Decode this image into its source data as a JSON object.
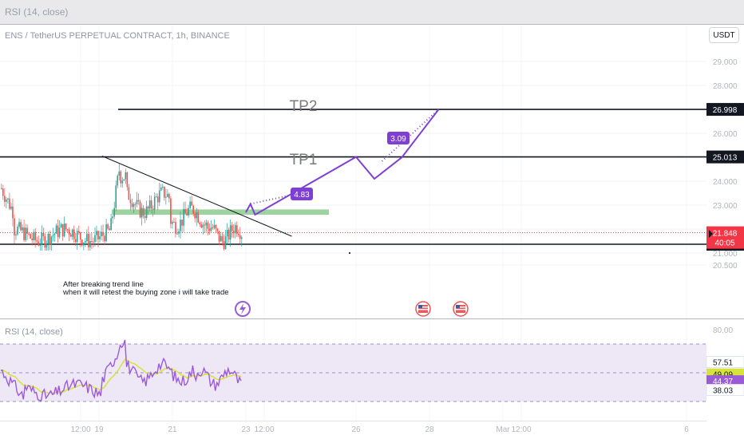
{
  "top_strip": {
    "rsi_label": "RSI (14, close)"
  },
  "header": {
    "symbol_title": "ENS / TetherUS PERPETUAL CONTRACT, 1h, BINANCE",
    "currency_button": "USDT"
  },
  "countdown": "40:05",
  "annotation": {
    "line1": "After breaking trend line",
    "line2": "when it will retest the buying zone i will take trade"
  },
  "colors": {
    "up": "#26a69a",
    "down": "#ef5350",
    "projection": "#7e3fd6",
    "zone": "#4caf50",
    "rsi_line": "#9c5bd6",
    "rsi_ma": "#d8e23c",
    "rsi_band": "#ede7f6"
  },
  "icons": [
    "lightning-event-icon",
    "us-flag-event-icon",
    "us-flag-event-icon"
  ],
  "chart_data": [
    {
      "type": "candlestick",
      "title": "ENS / TetherUS PERPETUAL CONTRACT, 1h, BINANCE",
      "ylim": [
        20.2,
        29.6
      ],
      "y_ticks": [
        20.5,
        21.0,
        22.0,
        23.0,
        24.0,
        25.0,
        26.0,
        27.0,
        28.0,
        29.0
      ],
      "y_tick_labels": [
        "20.500",
        "21.000",
        "22.000",
        "23.000",
        "24.000",
        "25.000",
        "26.000",
        "27.000",
        "28.000",
        "29.000"
      ],
      "x_tick_labels": [
        "12:00",
        "19",
        "21",
        "23",
        "12:00",
        "26",
        "28",
        "Mar",
        "12:00",
        "6"
      ],
      "price_range": {
        "low": 21.1,
        "high": 25.05,
        "last": 21.848
      },
      "horizontal_levels": [
        {
          "value": 26.998,
          "label": "26.998",
          "text": "TP2"
        },
        {
          "value": 25.013,
          "label": "25.013",
          "text": "TP1"
        },
        {
          "value": 21.367,
          "label": "21.367",
          "text": ""
        }
      ],
      "last_price": {
        "value": 21.848,
        "label": "21.848"
      },
      "buy_zone": {
        "low": 22.6,
        "high": 22.82
      },
      "trend_line": [
        {
          "x": "19 02:00",
          "y": 25.05
        },
        {
          "x": "24 06:00",
          "y": 21.7
        }
      ],
      "projection_path": [
        {
          "x": "23 00:00",
          "y": 22.7
        },
        {
          "x": "23 03:00",
          "y": 23.05
        },
        {
          "x": "23 06:00",
          "y": 22.6
        },
        {
          "x": "26 00:00",
          "y": 25.013
        },
        {
          "x": "26 12:00",
          "y": 24.1
        },
        {
          "x": "27 06:00",
          "y": 25.0
        },
        {
          "x": "28 06:00",
          "y": 26.998
        }
      ],
      "measurement_labels": [
        {
          "text": "4.83"
        },
        {
          "text": "3.09"
        }
      ]
    },
    {
      "type": "line",
      "title": "RSI (14, close)",
      "ylim": [
        30,
        82
      ],
      "y_ticks": [
        80
      ],
      "y_tick_labels": [
        "80.00"
      ],
      "band": [
        30,
        70
      ],
      "series": [
        {
          "name": "RSI",
          "last": 44.37,
          "label": "44.37"
        },
        {
          "name": "RSI-based MA",
          "last": 49.09,
          "label": "49.09"
        }
      ],
      "axis_markers": [
        {
          "value": 57.51,
          "label": "57.51"
        },
        {
          "value": 38.03,
          "label": "38.03"
        }
      ]
    }
  ]
}
